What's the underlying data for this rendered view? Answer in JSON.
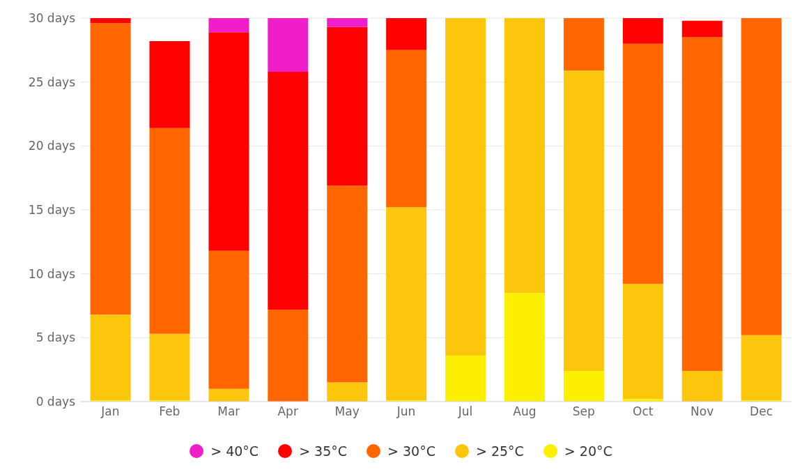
{
  "chart_data": {
    "type": "bar",
    "stacked": true,
    "categories": [
      "Jan",
      "Feb",
      "Mar",
      "Apr",
      "May",
      "Jun",
      "Jul",
      "Aug",
      "Sep",
      "Oct",
      "Nov",
      "Dec"
    ],
    "series": [
      {
        "name": "> 20°C",
        "color": "#fcf000",
        "values": [
          0.1,
          0.1,
          0,
          0,
          0,
          0.1,
          3.6,
          8.5,
          2.4,
          0.2,
          0,
          0.1
        ]
      },
      {
        "name": "> 25°C",
        "color": "#fcc60c",
        "values": [
          6.7,
          5.2,
          1.0,
          0,
          1.5,
          15.1,
          26.4,
          21.5,
          23.5,
          9.0,
          2.4,
          5.1
        ]
      },
      {
        "name": "> 30°C",
        "color": "#ff6600",
        "values": [
          22.8,
          16.1,
          10.8,
          7.2,
          15.4,
          12.3,
          0,
          0,
          4.1,
          18.8,
          26.1,
          24.8
        ]
      },
      {
        "name": "> 35°C",
        "color": "#ff0000",
        "values": [
          0.4,
          6.8,
          17.1,
          18.6,
          12.4,
          2.5,
          0,
          0,
          0,
          2.0,
          1.3,
          0
        ]
      },
      {
        "name": "> 40°C",
        "color": "#f01ec8",
        "values": [
          0,
          0,
          1.1,
          4.2,
          0.7,
          0,
          0,
          0,
          0,
          0,
          0,
          0
        ]
      }
    ],
    "ylim": [
      0,
      30
    ],
    "yticks": [
      {
        "value": 0,
        "label": "0 days"
      },
      {
        "value": 5,
        "label": "5 days"
      },
      {
        "value": 10,
        "label": "10 days"
      },
      {
        "value": 15,
        "label": "15 days"
      },
      {
        "value": 20,
        "label": "20 days"
      },
      {
        "value": 25,
        "label": "25 days"
      },
      {
        "value": 30,
        "label": "30 days"
      }
    ],
    "grid": "y",
    "legend": "bottom"
  }
}
